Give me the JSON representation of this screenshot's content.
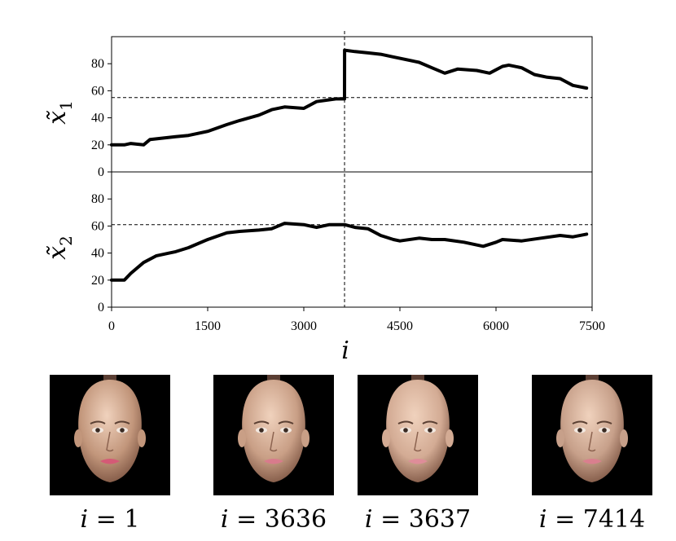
{
  "chart_data": {
    "type": "line",
    "xlabel": "i",
    "xlim": [
      0,
      7500
    ],
    "xticks": [
      "0",
      "1500",
      "3000",
      "4500",
      "6000",
      "7500"
    ],
    "xtick_values": [
      0,
      1500,
      3000,
      4500,
      6000,
      7500
    ],
    "vline_x": 3636,
    "panels": [
      {
        "name": "x1",
        "ylabel": "x̃",
        "ylabel_sub": "1",
        "ylim": [
          0,
          100
        ],
        "yticks": [
          "0",
          "20",
          "40",
          "60",
          "80"
        ],
        "ytick_values": [
          0,
          20,
          40,
          60,
          80
        ],
        "hline_y": 55,
        "series": [
          {
            "name": "x1",
            "x": [
              0,
              200,
              300,
              500,
              600,
              800,
              1000,
              1200,
              1500,
              1800,
              2000,
              2300,
              2500,
              2700,
              3000,
              3200,
              3500,
              3636,
              3637,
              3800,
              4000,
              4200,
              4400,
              4500,
              4800,
              5000,
              5200,
              5400,
              5700,
              5900,
              6100,
              6200,
              6400,
              6600,
              6800,
              7000,
              7200,
              7414
            ],
            "y": [
              20,
              20,
              21,
              20,
              24,
              25,
              26,
              27,
              30,
              35,
              38,
              42,
              46,
              48,
              47,
              52,
              54,
              54,
              90,
              89,
              88,
              87,
              85,
              84,
              81,
              77,
              73,
              76,
              75,
              73,
              78,
              79,
              77,
              72,
              70,
              69,
              64,
              62
            ]
          }
        ]
      },
      {
        "name": "x2",
        "ylabel": "x̃",
        "ylabel_sub": "2",
        "ylim": [
          0,
          100
        ],
        "yticks": [
          "0",
          "20",
          "40",
          "60",
          "80"
        ],
        "ytick_values": [
          0,
          20,
          40,
          60,
          80
        ],
        "hline_y": 61,
        "series": [
          {
            "name": "x2",
            "x": [
              0,
              200,
              300,
              500,
              700,
              900,
              1000,
              1200,
              1500,
              1800,
              2000,
              2300,
              2500,
              2700,
              3000,
              3200,
              3400,
              3636,
              3800,
              4000,
              4200,
              4400,
              4500,
              4800,
              5000,
              5200,
              5500,
              5800,
              6000,
              6100,
              6400,
              6700,
              7000,
              7200,
              7414
            ],
            "y": [
              20,
              20,
              25,
              33,
              38,
              40,
              41,
              44,
              50,
              55,
              56,
              57,
              58,
              62,
              61,
              59,
              61,
              61,
              59,
              58,
              53,
              50,
              49,
              51,
              50,
              50,
              48,
              45,
              48,
              50,
              49,
              51,
              53,
              52,
              54
            ]
          }
        ]
      }
    ]
  },
  "faces": [
    {
      "label_var": "i",
      "label_eq": "= 1",
      "tone": "#c2967b",
      "lip": "#d45a76"
    },
    {
      "label_var": "i",
      "label_eq": "= 3636",
      "tone": "#c99f86",
      "lip": "#d87b8c"
    },
    {
      "label_var": "i",
      "label_eq": "= 3637",
      "tone": "#d3ab94",
      "lip": "#de8d99"
    },
    {
      "label_var": "i",
      "label_eq": "= 7414",
      "tone": "#c7a08a",
      "lip": "#d97f8e"
    }
  ],
  "colors": {
    "line": "#000000",
    "background": "#ffffff",
    "face_bg": "#000000"
  }
}
